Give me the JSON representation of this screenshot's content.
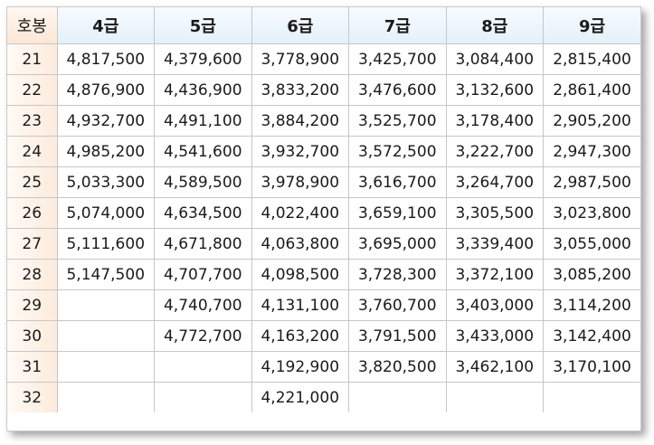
{
  "table": {
    "corner_label": "호봉",
    "grades": [
      "4급",
      "5급",
      "6급",
      "7급",
      "8급",
      "9급"
    ],
    "rows": [
      {
        "step": "21",
        "values": [
          "4,817,500",
          "4,379,600",
          "3,778,900",
          "3,425,700",
          "3,084,400",
          "2,815,400"
        ]
      },
      {
        "step": "22",
        "values": [
          "4,876,900",
          "4,436,900",
          "3,833,200",
          "3,476,600",
          "3,132,600",
          "2,861,400"
        ]
      },
      {
        "step": "23",
        "values": [
          "4,932,700",
          "4,491,100",
          "3,884,200",
          "3,525,700",
          "3,178,400",
          "2,905,200"
        ]
      },
      {
        "step": "24",
        "values": [
          "4,985,200",
          "4,541,600",
          "3,932,700",
          "3,572,500",
          "3,222,700",
          "2,947,300"
        ]
      },
      {
        "step": "25",
        "values": [
          "5,033,300",
          "4,589,500",
          "3,978,900",
          "3,616,700",
          "3,264,700",
          "2,987,500"
        ]
      },
      {
        "step": "26",
        "values": [
          "5,074,000",
          "4,634,500",
          "4,022,400",
          "3,659,100",
          "3,305,500",
          "3,023,800"
        ]
      },
      {
        "step": "27",
        "values": [
          "5,111,600",
          "4,671,800",
          "4,063,800",
          "3,695,000",
          "3,339,400",
          "3,055,000"
        ]
      },
      {
        "step": "28",
        "values": [
          "5,147,500",
          "4,707,700",
          "4,098,500",
          "3,728,300",
          "3,372,100",
          "3,085,200"
        ]
      },
      {
        "step": "29",
        "values": [
          "",
          "4,740,700",
          "4,131,100",
          "3,760,700",
          "3,403,000",
          "3,114,200"
        ]
      },
      {
        "step": "30",
        "values": [
          "",
          "4,772,700",
          "4,163,200",
          "3,791,500",
          "3,433,000",
          "3,142,400"
        ]
      },
      {
        "step": "31",
        "values": [
          "",
          "",
          "4,192,900",
          "3,820,500",
          "3,462,100",
          "3,170,100"
        ]
      },
      {
        "step": "32",
        "values": [
          "",
          "",
          "4,221,000",
          "",
          "",
          ""
        ]
      }
    ]
  }
}
